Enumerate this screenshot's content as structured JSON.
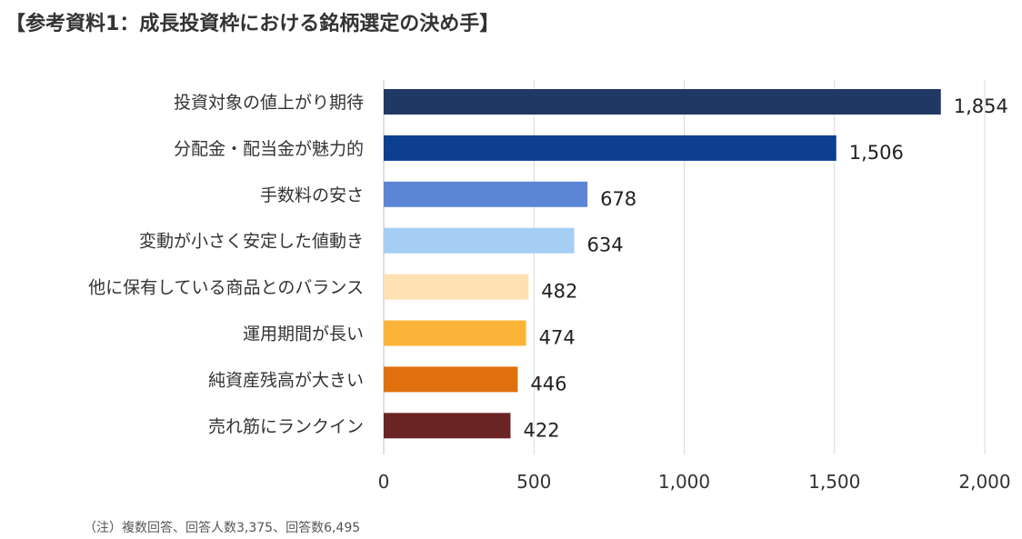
{
  "title": "【参考資料1：成長投資枠における銘柄選定の決め手】",
  "note": "（注）複数回答、回答人数3,375、回答数6,495",
  "chart_data": {
    "type": "bar",
    "orientation": "horizontal",
    "title": "【参考資料1：成長投資枠における銘柄選定の決め手】",
    "categories": [
      "投資対象の値上がり期待",
      "分配金・配当金が魅力的",
      "手数料の安さ",
      "変動が小さく安定した値動き",
      "他に保有している商品とのバランス",
      "運用期間が長い",
      "純資産残高が大きい",
      "売れ筋にランクイン"
    ],
    "values": [
      1854,
      1506,
      678,
      634,
      482,
      474,
      446,
      422
    ],
    "value_labels": [
      "1,854",
      "1,506",
      "678",
      "634",
      "482",
      "474",
      "446",
      "422"
    ],
    "colors": [
      "#203864",
      "#0c3f8f",
      "#5b86d6",
      "#a6cef5",
      "#ffe0b2",
      "#fcb438",
      "#e0700e",
      "#6b2424"
    ],
    "xlim": [
      0,
      2000
    ],
    "xticks": [
      0,
      500,
      1000,
      1500,
      2000
    ],
    "xtick_labels": [
      "0",
      "500",
      "1,000",
      "1,500",
      "2,000"
    ],
    "grid": "vertical",
    "legend": "none"
  }
}
